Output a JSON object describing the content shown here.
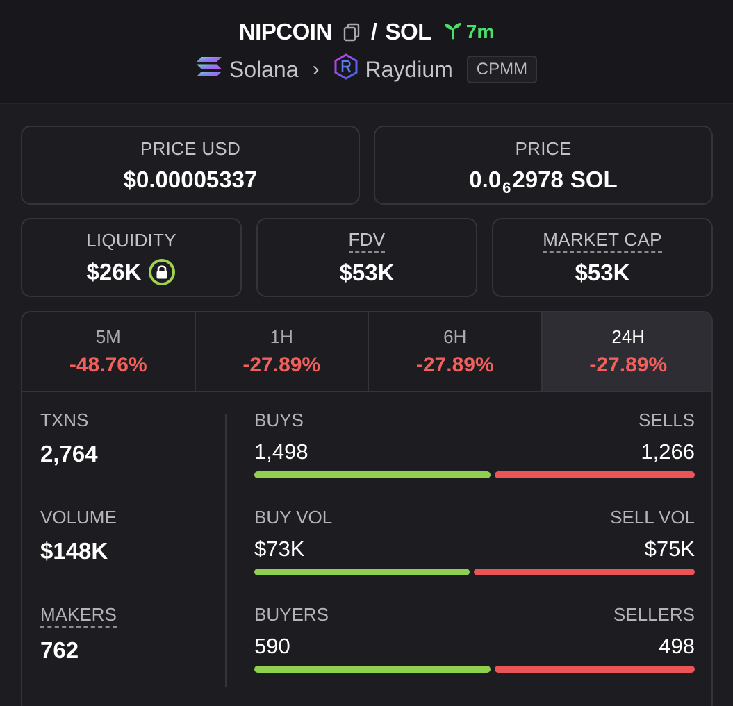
{
  "header": {
    "base_token": "NIPCOIN",
    "separator": "/",
    "quote_token": "SOL",
    "age": "7m",
    "chain": "Solana",
    "dex": "Raydium",
    "pool_type": "CPMM"
  },
  "price_usd": {
    "label": "PRICE USD",
    "value": "$0.00005337"
  },
  "price_native": {
    "label": "PRICE",
    "prefix": "0.0",
    "zero_count": "6",
    "digits": "2978",
    "unit": "SOL"
  },
  "liquidity": {
    "label": "LIQUIDITY",
    "value": "$26K"
  },
  "fdv": {
    "label": "FDV",
    "value": "$53K"
  },
  "market_cap": {
    "label": "MARKET CAP",
    "value": "$53K"
  },
  "timeframes": [
    {
      "label": "5M",
      "change": "-48.76%",
      "active": false
    },
    {
      "label": "1H",
      "change": "-27.89%",
      "active": false
    },
    {
      "label": "6H",
      "change": "-27.89%",
      "active": false
    },
    {
      "label": "24H",
      "change": "-27.89%",
      "active": true
    }
  ],
  "stats": {
    "txns": {
      "label": "TXNS",
      "value": "2,764"
    },
    "volume": {
      "label": "VOLUME",
      "value": "$148K"
    },
    "makers": {
      "label": "MAKERS",
      "value": "762"
    }
  },
  "bars": [
    {
      "left_label": "BUYS",
      "right_label": "SELLS",
      "left_value": "1,498",
      "right_value": "1,266",
      "buy_share": 0.542
    },
    {
      "left_label": "BUY VOL",
      "right_label": "SELL VOL",
      "left_value": "$73K",
      "right_value": "$75K",
      "buy_share": 0.493
    },
    {
      "left_label": "BUYERS",
      "right_label": "SELLERS",
      "left_value": "590",
      "right_value": "498",
      "buy_share": 0.542
    }
  ],
  "colors": {
    "buy": "#8fd14f",
    "sell": "#ea5456",
    "negative_change": "#f0605d",
    "age_green": "#4ade6a",
    "lock_green": "#9fd34e"
  },
  "icons": {
    "copy": "copy-icon",
    "age": "seedling-icon",
    "chain": "solana-logo-icon",
    "dex": "raydium-logo-icon",
    "liquidity_lock": "lock-icon",
    "breadcrumb": "chevron-right-icon"
  }
}
